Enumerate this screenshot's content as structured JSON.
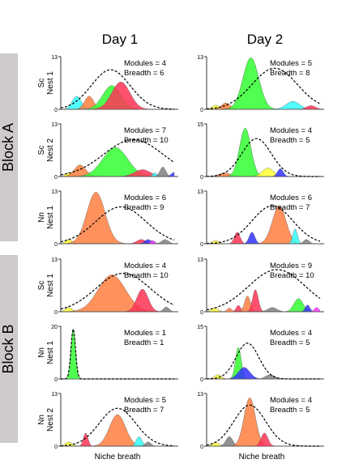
{
  "columns": [
    "Day 1",
    "Day 2"
  ],
  "blocks": [
    {
      "label": "Block A"
    },
    {
      "label": "Block B"
    }
  ],
  "x_axis_label": "Niche breath",
  "modules_label": "Modules",
  "breadth_label": "Breadth",
  "colors": {
    "yellow": "#ffff33",
    "cyan": "#33ffff",
    "orange": "#ff7f40",
    "green": "#33ff33",
    "red": "#ff3355",
    "blue": "#3333ff",
    "gray": "#7f7f7f",
    "magenta": "#ff33ff",
    "block_bg": "#cdc9cd"
  },
  "chart_data": [
    {
      "type": "area",
      "block": "Block A",
      "row_label": [
        "Sc",
        "Nest 1"
      ],
      "day": "Day 1",
      "ymax": 13,
      "modules": 4,
      "breadth": 6,
      "envelope": {
        "mu": 0.44,
        "sigma": 0.17,
        "amp": 0.75
      },
      "modules_list": [
        {
          "color": "cyan",
          "mu": 0.14,
          "sigma": 0.04,
          "amp": 0.25
        },
        {
          "color": "orange",
          "mu": 0.25,
          "sigma": 0.04,
          "amp": 0.25
        },
        {
          "color": "green",
          "mu": 0.45,
          "sigma": 0.08,
          "amp": 0.45
        },
        {
          "color": "red",
          "mu": 0.53,
          "sigma": 0.08,
          "amp": 0.52
        }
      ]
    },
    {
      "type": "area",
      "block": "Block A",
      "row_label": [
        "Sc",
        "Nest 1"
      ],
      "day": "Day 2",
      "ymax": 13,
      "modules": 5,
      "breadth": 8,
      "envelope": {
        "mu": 0.6,
        "sigma": 0.2,
        "amp": 0.78
      },
      "modules_list": [
        {
          "color": "yellow",
          "mu": 0.08,
          "sigma": 0.03,
          "amp": 0.08
        },
        {
          "color": "orange",
          "mu": 0.17,
          "sigma": 0.04,
          "amp": 0.12
        },
        {
          "color": "green",
          "mu": 0.39,
          "sigma": 0.07,
          "amp": 0.98
        },
        {
          "color": "cyan",
          "mu": 0.76,
          "sigma": 0.06,
          "amp": 0.15
        },
        {
          "color": "red",
          "mu": 0.92,
          "sigma": 0.04,
          "amp": 0.07
        }
      ]
    },
    {
      "type": "area",
      "block": "Block A",
      "row_label": [
        "Sc",
        "Nest 2"
      ],
      "day": "Day 1",
      "ymax": 13,
      "modules": 7,
      "breadth": 10,
      "envelope": {
        "mu": 0.64,
        "sigma": 0.26,
        "amp": 0.7
      },
      "modules_list": [
        {
          "color": "yellow",
          "mu": 0.07,
          "sigma": 0.03,
          "amp": 0.07
        },
        {
          "color": "orange",
          "mu": 0.17,
          "sigma": 0.05,
          "amp": 0.22
        },
        {
          "color": "green",
          "mu": 0.48,
          "sigma": 0.11,
          "amp": 0.55
        },
        {
          "color": "red",
          "mu": 0.72,
          "sigma": 0.07,
          "amp": 0.13
        },
        {
          "color": "cyan",
          "mu": 0.83,
          "sigma": 0.02,
          "amp": 0.07
        },
        {
          "color": "gray",
          "mu": 0.9,
          "sigma": 0.025,
          "amp": 0.18
        },
        {
          "color": "blue",
          "mu": 1.0,
          "sigma": 0.025,
          "amp": 0.08
        }
      ]
    },
    {
      "type": "area",
      "block": "Block A",
      "row_label": [
        "Sc",
        "Nest 2"
      ],
      "day": "Day 2",
      "ymax": 15,
      "modules": 4,
      "breadth": 5,
      "envelope": {
        "mu": 0.44,
        "sigma": 0.13,
        "amp": 0.72
      },
      "modules_list": [
        {
          "color": "orange",
          "mu": 0.16,
          "sigma": 0.05,
          "amp": 0.07
        },
        {
          "color": "green",
          "mu": 0.34,
          "sigma": 0.05,
          "amp": 0.92
        },
        {
          "color": "yellow",
          "mu": 0.54,
          "sigma": 0.05,
          "amp": 0.16
        },
        {
          "color": "blue",
          "mu": 0.65,
          "sigma": 0.025,
          "amp": 0.15
        }
      ]
    },
    {
      "type": "area",
      "block": "Block A",
      "row_label": [
        "Nn",
        "Nest 1"
      ],
      "day": "Day 1",
      "ymax": 13,
      "modules": 6,
      "breadth": 9,
      "envelope": {
        "mu": 0.53,
        "sigma": 0.22,
        "amp": 0.7
      },
      "modules_list": [
        {
          "color": "yellow",
          "mu": 0.07,
          "sigma": 0.03,
          "amp": 0.08
        },
        {
          "color": "orange",
          "mu": 0.31,
          "sigma": 0.08,
          "amp": 0.98
        },
        {
          "color": "red",
          "mu": 0.71,
          "sigma": 0.04,
          "amp": 0.08
        },
        {
          "color": "blue",
          "mu": 0.77,
          "sigma": 0.03,
          "amp": 0.08
        },
        {
          "color": "magenta",
          "mu": 0.81,
          "sigma": 0.02,
          "amp": 0.06
        },
        {
          "color": "gray",
          "mu": 0.92,
          "sigma": 0.03,
          "amp": 0.08
        }
      ]
    },
    {
      "type": "area",
      "block": "Block A",
      "row_label": [
        "Nn",
        "Nest 1"
      ],
      "day": "Day 2",
      "ymax": 13,
      "modules": 6,
      "breadth": 7,
      "envelope": {
        "mu": 0.58,
        "sigma": 0.18,
        "amp": 0.72
      },
      "modules_list": [
        {
          "color": "yellow",
          "mu": 0.08,
          "sigma": 0.03,
          "amp": 0.06
        },
        {
          "color": "red",
          "mu": 0.27,
          "sigma": 0.025,
          "amp": 0.22
        },
        {
          "color": "blue",
          "mu": 0.4,
          "sigma": 0.025,
          "amp": 0.22
        },
        {
          "color": "orange",
          "mu": 0.64,
          "sigma": 0.06,
          "amp": 0.72
        },
        {
          "color": "cyan",
          "mu": 0.78,
          "sigma": 0.02,
          "amp": 0.28
        },
        {
          "color": "gray",
          "mu": 0.88,
          "sigma": 0.025,
          "amp": 0.08
        }
      ]
    },
    {
      "type": "area",
      "block": "Block B",
      "row_label": [
        "Sc",
        "Nest 1"
      ],
      "day": "Day 1",
      "ymax": 13,
      "modules": 4,
      "breadth": 10,
      "envelope": {
        "mu": 0.55,
        "sigma": 0.24,
        "amp": 0.73
      },
      "modules_list": [
        {
          "color": "yellow",
          "mu": 0.07,
          "sigma": 0.03,
          "amp": 0.08
        },
        {
          "color": "orange",
          "mu": 0.45,
          "sigma": 0.12,
          "amp": 0.7
        },
        {
          "color": "red",
          "mu": 0.72,
          "sigma": 0.05,
          "amp": 0.43
        },
        {
          "color": "gray",
          "mu": 0.93,
          "sigma": 0.025,
          "amp": 0.09
        }
      ]
    },
    {
      "type": "area",
      "block": "Block B",
      "row_label": [
        "Sc",
        "Nest 1"
      ],
      "day": "Day 2",
      "ymax": 13,
      "modules": 9,
      "breadth": 10,
      "envelope": {
        "mu": 0.62,
        "sigma": 0.25,
        "amp": 0.8
      },
      "modules_list": [
        {
          "color": "yellow",
          "mu": 0.07,
          "sigma": 0.03,
          "amp": 0.07
        },
        {
          "color": "red",
          "mu": 0.28,
          "sigma": 0.02,
          "amp": 0.12
        },
        {
          "color": "orange",
          "mu": 0.36,
          "sigma": 0.025,
          "amp": 0.3
        },
        {
          "color": "red",
          "mu": 0.43,
          "sigma": 0.025,
          "amp": 0.42
        },
        {
          "color": "gray",
          "mu": 0.58,
          "sigma": 0.04,
          "amp": 0.08
        },
        {
          "color": "green",
          "mu": 0.81,
          "sigma": 0.04,
          "amp": 0.25
        },
        {
          "color": "blue",
          "mu": 0.89,
          "sigma": 0.02,
          "amp": 0.13
        },
        {
          "color": "magenta",
          "mu": 0.97,
          "sigma": 0.02,
          "amp": 0.08
        },
        {
          "color": "orange",
          "mu": 0.2,
          "sigma": 0.02,
          "amp": 0.07
        }
      ]
    },
    {
      "type": "area",
      "block": "Block B",
      "row_label": [
        "Nn",
        "Nest 1"
      ],
      "day": "Day 1",
      "ymax": 20,
      "modules": 1,
      "breadth": 1,
      "envelope": {
        "mu": 0.11,
        "sigma": 0.02,
        "amp": 0.95
      },
      "modules_list": [
        {
          "color": "green",
          "mu": 0.11,
          "sigma": 0.02,
          "amp": 0.96
        }
      ]
    },
    {
      "type": "area",
      "block": "Block B",
      "row_label": [
        "Nn",
        "Nest 1"
      ],
      "day": "Day 2",
      "ymax": 15,
      "modules": 4,
      "breadth": 5,
      "envelope": {
        "mu": 0.36,
        "sigma": 0.1,
        "amp": 0.68
      },
      "modules_list": [
        {
          "color": "yellow",
          "mu": 0.1,
          "sigma": 0.03,
          "amp": 0.08
        },
        {
          "color": "green",
          "mu": 0.28,
          "sigma": 0.025,
          "amp": 0.6
        },
        {
          "color": "blue",
          "mu": 0.33,
          "sigma": 0.05,
          "amp": 0.22
        },
        {
          "color": "gray",
          "mu": 0.56,
          "sigma": 0.04,
          "amp": 0.08
        }
      ]
    },
    {
      "type": "area",
      "block": "Block B",
      "row_label": [
        "Nn",
        "Nest 2"
      ],
      "day": "Day 1",
      "ymax": 13,
      "modules": 5,
      "breadth": 7,
      "envelope": {
        "mu": 0.5,
        "sigma": 0.16,
        "amp": 0.72
      },
      "modules_list": [
        {
          "color": "yellow",
          "mu": 0.07,
          "sigma": 0.03,
          "amp": 0.08
        },
        {
          "color": "red",
          "mu": 0.22,
          "sigma": 0.02,
          "amp": 0.25
        },
        {
          "color": "orange",
          "mu": 0.5,
          "sigma": 0.07,
          "amp": 0.6
        },
        {
          "color": "cyan",
          "mu": 0.69,
          "sigma": 0.025,
          "amp": 0.18
        },
        {
          "color": "gray",
          "mu": 0.77,
          "sigma": 0.025,
          "amp": 0.08
        }
      ]
    },
    {
      "type": "area",
      "block": "Block B",
      "row_label": [
        "Nn",
        "Nest 2"
      ],
      "day": "Day 2",
      "ymax": 13,
      "modules": 4,
      "breadth": 5,
      "envelope": {
        "mu": 0.38,
        "sigma": 0.14,
        "amp": 0.78
      },
      "modules_list": [
        {
          "color": "yellow",
          "mu": 0.08,
          "sigma": 0.03,
          "amp": 0.07
        },
        {
          "color": "gray",
          "mu": 0.2,
          "sigma": 0.03,
          "amp": 0.18
        },
        {
          "color": "orange",
          "mu": 0.38,
          "sigma": 0.05,
          "amp": 0.92
        },
        {
          "color": "red",
          "mu": 0.51,
          "sigma": 0.03,
          "amp": 0.25
        }
      ]
    }
  ]
}
